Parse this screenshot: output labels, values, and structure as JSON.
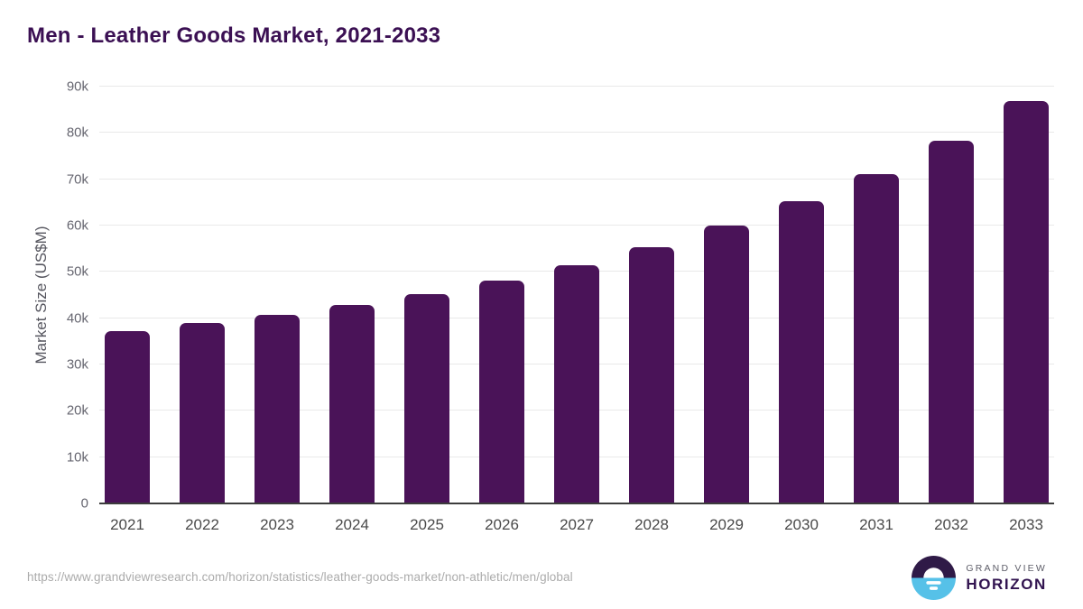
{
  "title": "Men - Leather Goods Market, 2021-2033",
  "chart_data": {
    "type": "bar",
    "title": "Men - Leather Goods Market, 2021-2033",
    "categories": [
      "2021",
      "2022",
      "2023",
      "2024",
      "2025",
      "2026",
      "2027",
      "2028",
      "2029",
      "2030",
      "2031",
      "2032",
      "2033"
    ],
    "values": [
      37200,
      38900,
      40800,
      42800,
      45200,
      48100,
      51400,
      55300,
      60000,
      65200,
      71100,
      78400,
      86800
    ],
    "xlabel": "",
    "ylabel": "Market Size (US$M)",
    "ylim": [
      0,
      90000
    ],
    "yticks": [
      {
        "value": 0,
        "label": "0"
      },
      {
        "value": 10000,
        "label": "10k"
      },
      {
        "value": 20000,
        "label": "20k"
      },
      {
        "value": 30000,
        "label": "30k"
      },
      {
        "value": 40000,
        "label": "40k"
      },
      {
        "value": 50000,
        "label": "50k"
      },
      {
        "value": 60000,
        "label": "60k"
      },
      {
        "value": 70000,
        "label": "70k"
      },
      {
        "value": 80000,
        "label": "80k"
      },
      {
        "value": 90000,
        "label": "90k"
      }
    ],
    "grid": true,
    "legend": false,
    "bar_color": "#4a1358"
  },
  "footer": {
    "source_url": "https://www.grandviewresearch.com/horizon/statistics/leather-goods-market/non-athletic/men/global",
    "logo": {
      "line1": "GRAND VIEW",
      "line2": "HORIZON",
      "mark_top_color": "#2f1a47",
      "mark_bottom_color": "#56c1e8"
    }
  },
  "colors": {
    "title": "#3b1053",
    "bar": "#4a1358",
    "gridline": "#e9e9e9",
    "baseline": "#3c3c3c",
    "y_tick": "#666670",
    "x_tick": "#4a4a4a",
    "footer_url": "#ababab"
  }
}
